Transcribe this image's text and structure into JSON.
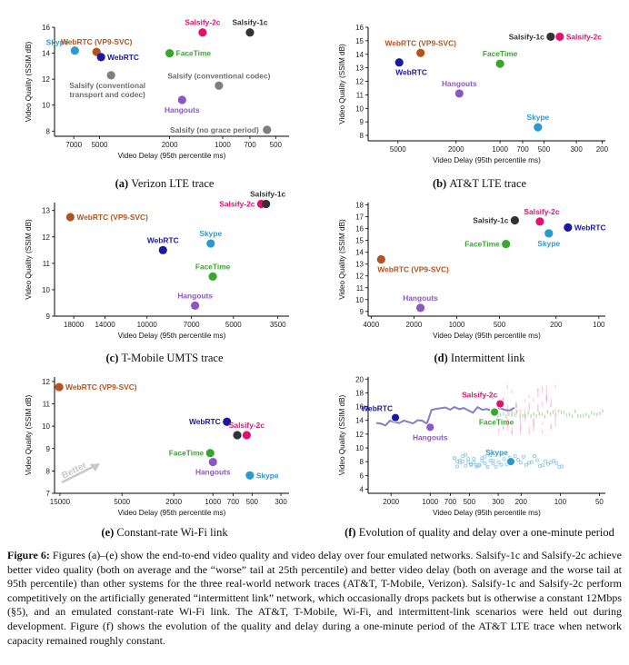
{
  "colors": {
    "salsify": "#e5106b",
    "salsify1c": "#333333",
    "webrtc": "#1a1aa0",
    "vp9": "#b5531e",
    "facetime": "#3aa62e",
    "skype": "#2b9ad0",
    "hangouts": "#8c58c0",
    "gray": "#7f7f7f"
  },
  "chart_data": [
    {
      "id": "a",
      "type": "scatter",
      "caption_letter": "(a)",
      "caption_text": "Verizon LTE trace",
      "xlabel": "Video Delay (95th percentile ms)",
      "ylabel": "Video Quality (SSIM dB)",
      "x_scale": "log-reversed",
      "xlim": [
        9000,
        420
      ],
      "ylim": [
        7.6,
        16
      ],
      "xticks": [
        {
          "v": 7000,
          "l": "7000"
        },
        {
          "v": 5000,
          "l": "5000"
        },
        {
          "v": 2000,
          "l": "2000"
        },
        {
          "v": 1000,
          "l": "1000"
        },
        {
          "v": 700,
          "l": "700"
        },
        {
          "v": 500,
          "l": "500"
        }
      ],
      "yticks": [
        8,
        10,
        12,
        14,
        16
      ],
      "points": [
        {
          "label": "Skype",
          "x": 6900,
          "y": 14.2,
          "c": "skype",
          "lx": "left",
          "ly": -1
        },
        {
          "label": "WebRTC (VP9-SVC)",
          "x": 5200,
          "y": 14.1,
          "c": "vp9",
          "lx": "above"
        },
        {
          "label": "WebRTC",
          "x": 4900,
          "y": 13.7,
          "c": "webrtc",
          "lx": "right"
        },
        {
          "label": "FaceTime",
          "x": 2000,
          "y": 14.0,
          "c": "facetime",
          "lx": "right"
        },
        {
          "label": "Salsify-2c",
          "x": 1300,
          "y": 15.6,
          "c": "salsify",
          "lx": "above"
        },
        {
          "label": "Salsify-1c",
          "x": 700,
          "y": 15.6,
          "c": "salsify1c",
          "lx": "above"
        },
        {
          "label": "Salsify (conventional transport and codec)",
          "x": 4300,
          "y": 12.3,
          "c": "gray",
          "lx": "below2",
          "lines": [
            "Salsify (conventional",
            "transport and codec)"
          ]
        },
        {
          "label": "Salsify (conventional codec)",
          "x": 1050,
          "y": 11.5,
          "c": "gray",
          "lx": "above"
        },
        {
          "label": "Hangouts",
          "x": 1700,
          "y": 10.4,
          "c": "hangouts",
          "lx": "below"
        },
        {
          "label": "Salsify (no grace period)",
          "x": 560,
          "y": 8.1,
          "c": "gray",
          "lx": "leftw"
        }
      ]
    },
    {
      "id": "b",
      "type": "scatter",
      "caption_letter": "(b)",
      "caption_text": "AT&T LTE trace",
      "xlabel": "Video Delay (95th percentile ms)",
      "ylabel": "Video Quality (SSIM dB)",
      "x_scale": "log-reversed",
      "xlim": [
        8000,
        190
      ],
      "ylim": [
        7.6,
        16
      ],
      "xticks": [
        {
          "v": 5000,
          "l": "5000"
        },
        {
          "v": 2000,
          "l": "2000"
        },
        {
          "v": 1000,
          "l": "1000"
        },
        {
          "v": 700,
          "l": "700"
        },
        {
          "v": 500,
          "l": "500"
        },
        {
          "v": 300,
          "l": "300"
        },
        {
          "v": 200,
          "l": "200"
        }
      ],
      "yticks": [
        8,
        9,
        10,
        11,
        12,
        13,
        14,
        15,
        16
      ],
      "points": [
        {
          "label": "Salsify-1c",
          "x": 450,
          "y": 15.3,
          "c": "salsify1c",
          "lx": "left"
        },
        {
          "label": "Salsify-2c",
          "x": 390,
          "y": 15.3,
          "c": "salsify",
          "lx": "right"
        },
        {
          "label": "WebRTC (VP9-SVC)",
          "x": 3500,
          "y": 14.1,
          "c": "vp9",
          "lx": "above"
        },
        {
          "label": "FaceTime",
          "x": 1000,
          "y": 13.3,
          "c": "facetime",
          "lx": "above"
        },
        {
          "label": "WebRTC",
          "x": 4900,
          "y": 13.4,
          "c": "webrtc",
          "lx": "belowr"
        },
        {
          "label": "Hangouts",
          "x": 1900,
          "y": 11.1,
          "c": "hangouts",
          "lx": "above"
        },
        {
          "label": "Skype",
          "x": 550,
          "y": 8.6,
          "c": "skype",
          "lx": "above"
        }
      ]
    },
    {
      "id": "c",
      "type": "scatter",
      "caption_letter": "(c)",
      "caption_text": "T-Mobile UMTS trace",
      "xlabel": "Video Delay (95th percentile ms)",
      "ylabel": "Video Quality (SSIM dB)",
      "x_scale": "log-reversed",
      "xlim": [
        21000,
        3200
      ],
      "ylim": [
        9,
        13.3
      ],
      "xticks": [
        {
          "v": 18000,
          "l": "18000"
        },
        {
          "v": 14000,
          "l": "14000"
        },
        {
          "v": 10000,
          "l": "10000"
        },
        {
          "v": 7000,
          "l": "7000"
        },
        {
          "v": 5000,
          "l": "5000"
        },
        {
          "v": 3500,
          "l": "3500"
        }
      ],
      "yticks": [
        9,
        10,
        11,
        12,
        13
      ],
      "points": [
        {
          "label": "WebRTC (VP9-SVC)",
          "x": 18500,
          "y": 12.75,
          "c": "vp9",
          "lx": "right"
        },
        {
          "label": "Salsify-2c",
          "x": 4000,
          "y": 13.25,
          "c": "salsify",
          "lx": "left"
        },
        {
          "label": "Salsify-1c",
          "x": 3850,
          "y": 13.25,
          "c": "salsify1c",
          "lx": "aboveR"
        },
        {
          "label": "WebRTC",
          "x": 8800,
          "y": 11.5,
          "c": "webrtc",
          "lx": "above"
        },
        {
          "label": "Skype",
          "x": 6000,
          "y": 11.75,
          "c": "skype",
          "lx": "above"
        },
        {
          "label": "FaceTime",
          "x": 5900,
          "y": 10.5,
          "c": "facetime",
          "lx": "above"
        },
        {
          "label": "Hangouts",
          "x": 6800,
          "y": 9.4,
          "c": "hangouts",
          "lx": "above"
        }
      ]
    },
    {
      "id": "d",
      "type": "scatter",
      "caption_letter": "(d)",
      "caption_text": "Intermittent link",
      "xlabel": "Video Delay (95th percentile ms)",
      "ylabel": "Video Quality (SSIM dB)",
      "x_scale": "log-reversed",
      "xlim": [
        4200,
        90
      ],
      "ylim": [
        8.6,
        18.2
      ],
      "xticks": [
        {
          "v": 4000,
          "l": "4000"
        },
        {
          "v": 2000,
          "l": "2000"
        },
        {
          "v": 1000,
          "l": "1000"
        },
        {
          "v": 500,
          "l": "500"
        },
        {
          "v": 200,
          "l": "200"
        },
        {
          "v": 100,
          "l": "100"
        }
      ],
      "yticks": [
        9,
        10,
        11,
        12,
        13,
        14,
        15,
        16,
        17,
        18
      ],
      "points": [
        {
          "label": "Salsify-1c",
          "x": 390,
          "y": 16.7,
          "c": "salsify1c",
          "lx": "left"
        },
        {
          "label": "Salsify-2c",
          "x": 260,
          "y": 16.6,
          "c": "salsify",
          "lx": "aboveR"
        },
        {
          "label": "WebRTC",
          "x": 165,
          "y": 16.1,
          "c": "webrtc",
          "lx": "right"
        },
        {
          "label": "Skype",
          "x": 225,
          "y": 15.6,
          "c": "skype",
          "lx": "below"
        },
        {
          "label": "FaceTime",
          "x": 450,
          "y": 14.7,
          "c": "facetime",
          "lx": "left"
        },
        {
          "label": "WebRTC (VP9-SVC)",
          "x": 3400,
          "y": 13.4,
          "c": "vp9",
          "lx": "belowr"
        },
        {
          "label": "Hangouts",
          "x": 1800,
          "y": 9.3,
          "c": "hangouts",
          "lx": "above"
        }
      ]
    },
    {
      "id": "e",
      "type": "scatter",
      "caption_letter": "(e)",
      "caption_text": "Constant-rate Wi-Fi link",
      "xlabel": "Video Delay (95th percentile ms)",
      "ylabel": "Video Quality (SSIM dB)",
      "x_scale": "log-reversed",
      "xlim": [
        16500,
        260
      ],
      "ylim": [
        7,
        12.2
      ],
      "xticks": [
        {
          "v": 15000,
          "l": "15000"
        },
        {
          "v": 5000,
          "l": "5000"
        },
        {
          "v": 2000,
          "l": "2000"
        },
        {
          "v": 1000,
          "l": "1000"
        },
        {
          "v": 700,
          "l": "700"
        },
        {
          "v": 500,
          "l": "500"
        },
        {
          "v": 300,
          "l": "300"
        }
      ],
      "yticks": [
        7,
        8,
        9,
        10,
        11,
        12
      ],
      "annotation": "Better",
      "points": [
        {
          "label": "WebRTC (VP9-SVC)",
          "x": 15200,
          "y": 11.75,
          "c": "vp9",
          "lx": "right"
        },
        {
          "label": "WebRTC",
          "x": 780,
          "y": 10.2,
          "c": "webrtc",
          "lx": "left"
        },
        {
          "label": "Salsify-2c",
          "x": 550,
          "y": 9.6,
          "c": "salsify",
          "lx": "above"
        },
        {
          "label": "Salsify-1c",
          "x": 650,
          "y": 9.6,
          "c": "salsify1c",
          "lx": "none"
        },
        {
          "label": "FaceTime",
          "x": 1050,
          "y": 8.8,
          "c": "facetime",
          "lx": "left"
        },
        {
          "label": "Hangouts",
          "x": 1000,
          "y": 8.4,
          "c": "hangouts",
          "lx": "below"
        },
        {
          "label": "Skype",
          "x": 520,
          "y": 7.8,
          "c": "skype",
          "lx": "right"
        }
      ]
    },
    {
      "id": "f",
      "type": "scatter",
      "caption_letter": "(f)",
      "caption_text": "Evolution of quality and delay over a one-minute period",
      "xlabel": "Video Delay (95th percentile ms)",
      "ylabel": "Video Quality (SSIM dB)",
      "x_scale": "log-reversed",
      "xlim": [
        3000,
        45
      ],
      "ylim": [
        3.4,
        20.3
      ],
      "xticks": [
        {
          "v": 2000,
          "l": "2000"
        },
        {
          "v": 1000,
          "l": "1000"
        },
        {
          "v": 700,
          "l": "700"
        },
        {
          "v": 500,
          "l": "500"
        },
        {
          "v": 300,
          "l": "300"
        },
        {
          "v": 200,
          "l": "200"
        },
        {
          "v": 100,
          "l": "100"
        },
        {
          "v": 50,
          "l": "50"
        }
      ],
      "yticks": [
        4,
        6,
        8,
        10,
        12,
        14,
        16,
        18,
        20
      ],
      "points": [
        {
          "label": "WebRTC",
          "x": 1850,
          "y": 14.4,
          "c": "webrtc",
          "lx": "aboveL"
        },
        {
          "label": "Salsify-2c",
          "x": 290,
          "y": 16.4,
          "c": "salsify",
          "lx": "aboveL"
        },
        {
          "label": "Salsify-1c",
          "x": 320,
          "y": 15.3,
          "c": "salsify1c",
          "lx": "none"
        },
        {
          "label": "FaceTime",
          "x": 320,
          "y": 15.2,
          "c": "facetime",
          "lx": "belowL"
        },
        {
          "label": "Hangouts",
          "x": 1000,
          "y": 13.0,
          "c": "hangouts",
          "lx": "below"
        },
        {
          "label": "Skype",
          "x": 240,
          "y": 8.0,
          "c": "skype",
          "lx": "aboveL"
        }
      ]
    }
  ],
  "caption": {
    "label": "Figure 6:",
    "text": " Figures (a)–(e) show the end-to-end video quality and video delay over four emulated networks. Salsify-1c and Salsify-2c achieve better video quality (both on average and the “worse” tail at 25th percentile) and better video delay (both on average and the worse tail at 95th percentile) than other systems for the three real-world network traces (AT&T, T-Mobile, Verizon). Salsify-1c and Salsify-2c perform competitively on the artificially generated “intermittent link” network, which occasionally drops packets but is otherwise a constant 12Mbps (§5), and an emulated constant-rate Wi-Fi link. The AT&T, T-Mobile, Wi-Fi, and intermittent-link scenarios were held out during development. Figure (f) shows the evolution of the quality and delay during a one-minute period of the AT&T LTE trace when network capacity remained roughly constant."
  }
}
